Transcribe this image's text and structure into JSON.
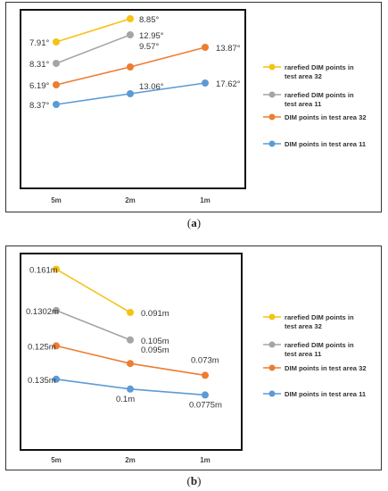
{
  "chart_data": [
    {
      "type": "line",
      "categories": [
        "5m",
        "2m",
        "1m"
      ],
      "ylim": [
        0,
        10
      ],
      "series": [
        {
          "name": "rarefied DIM points in test area 32",
          "color": "#F5C218",
          "values": [
            8.2,
            9.5,
            null
          ],
          "labels": [
            "7.91°",
            "8.85°",
            ""
          ]
        },
        {
          "name": "rarefied DIM points in test area 11",
          "color": "#A5A5A5",
          "values": [
            7.0,
            8.6,
            null
          ],
          "labels": [
            "8.31°",
            "12.95°",
            ""
          ]
        },
        {
          "name": "DIM points in test area 32",
          "color": "#ED7D31",
          "values": [
            5.8,
            6.8,
            7.9
          ],
          "labels": [
            "6.19°",
            "9.57°",
            "13.87°"
          ]
        },
        {
          "name": "DIM points in test area 11",
          "color": "#5B9BD5",
          "values": [
            4.7,
            5.3,
            5.9
          ],
          "labels": [
            "8.37°",
            "13.06°",
            "17.62°"
          ]
        }
      ]
    },
    {
      "type": "line",
      "categories": [
        "5m",
        "2m",
        "1m"
      ],
      "ylim": [
        0,
        10
      ],
      "series": [
        {
          "name": "rarefied DIM points in test area 32",
          "color": "#F5C218",
          "values": [
            9.2,
            7.0,
            null
          ],
          "labels": [
            "0.161m",
            "0.091m",
            ""
          ]
        },
        {
          "name": "rarefied DIM points in test area 11",
          "color": "#A5A5A5",
          "values": [
            7.1,
            5.6,
            null
          ],
          "labels": [
            "0.1302m",
            "0.105m",
            ""
          ]
        },
        {
          "name": "DIM points in test area 32",
          "color": "#ED7D31",
          "values": [
            5.3,
            4.4,
            3.8
          ],
          "labels": [
            "0.125m",
            "0.095m",
            "0.073m"
          ]
        },
        {
          "name": "DIM points in test area 11",
          "color": "#5B9BD5",
          "values": [
            3.6,
            3.1,
            2.8
          ],
          "labels": [
            "0.135m",
            "0.1m",
            "0.0775m"
          ]
        }
      ]
    }
  ],
  "captions": [
    {
      "open": "(",
      "letter": "a",
      "close": ")"
    },
    {
      "open": "(",
      "letter": "b",
      "close": ")"
    }
  ]
}
